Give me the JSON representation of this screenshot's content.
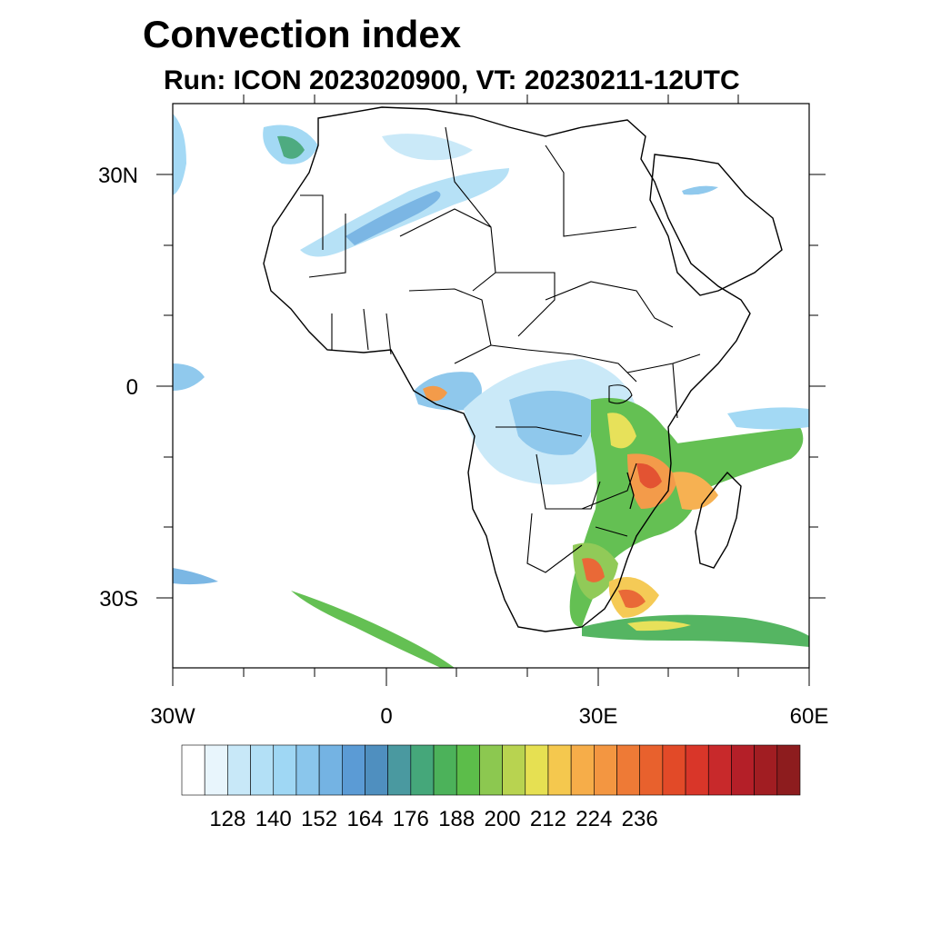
{
  "title": "Convection index",
  "subtitle": "Run: ICON 2023020900,  VT: 20230211-12UTC",
  "axes": {
    "lat_labels": [
      "30N",
      "0",
      "30S"
    ],
    "lon_labels": [
      "30W",
      "0",
      "30E",
      "60E"
    ]
  },
  "colorbar": {
    "labels": [
      "128",
      "140",
      "152",
      "164",
      "176",
      "188",
      "200",
      "212",
      "224",
      "236"
    ],
    "colors": [
      "#ffffff",
      "#e8f5fc",
      "#c8e8f8",
      "#b3e0f6",
      "#9fd7f4",
      "#8ac6ec",
      "#74b3e3",
      "#5b9bd5",
      "#4f8fbf",
      "#4a99a0",
      "#45a77a",
      "#4cb25a",
      "#5cbd4a",
      "#8cc850",
      "#b8d350",
      "#e6e052",
      "#f5c84e",
      "#f6ad49",
      "#f39641",
      "#ee7a36",
      "#e8612d",
      "#e24a28",
      "#d93629",
      "#c8292b",
      "#b41f28",
      "#a11d22",
      "#8d1c1e"
    ]
  },
  "map": {
    "projection": "cylindrical-equidistant",
    "lon_range": [
      -30,
      60
    ],
    "lat_range": [
      -40,
      40
    ],
    "features": [
      "coastlines",
      "country-borders",
      "convection-index-shading"
    ]
  }
}
